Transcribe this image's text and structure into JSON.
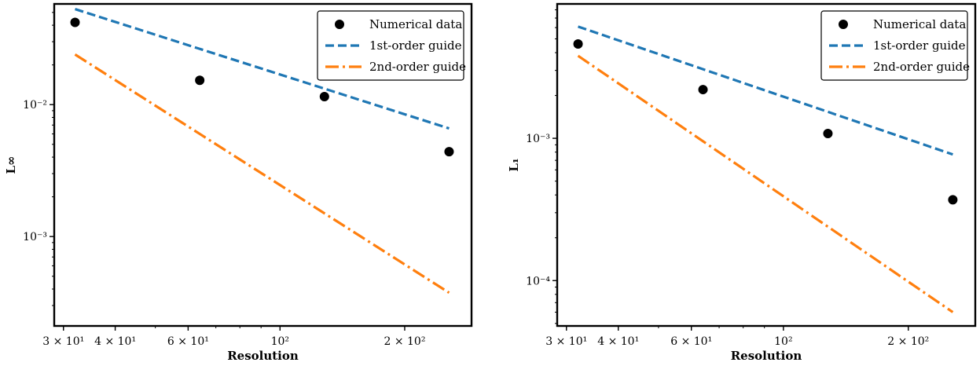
{
  "chart_data": [
    {
      "type": "scatter",
      "xscale": "log",
      "yscale": "log",
      "xlabel": "Resolution",
      "ylabel": "L∞",
      "xlim": [
        28.5,
        290
      ],
      "ylim": [
        0.00021,
        0.058
      ],
      "xticks": [
        {
          "value": 30,
          "label": "3 × 10¹"
        },
        {
          "value": 40,
          "label": "4 × 10¹"
        },
        {
          "value": 60,
          "label": "6 × 10¹"
        },
        {
          "value": 100,
          "label": "10²"
        },
        {
          "value": 200,
          "label": "2 × 10²"
        }
      ],
      "yticks": [
        {
          "value": 0.001,
          "label": "10⁻³"
        },
        {
          "value": 0.01,
          "label": "10⁻²"
        }
      ],
      "series": [
        {
          "name": "Numerical data",
          "kind": "scatter",
          "color": "#000000",
          "x": [
            32,
            64,
            128,
            256
          ],
          "y": [
            0.042,
            0.0153,
            0.0115,
            0.0044
          ]
        },
        {
          "name": "1st-order guide",
          "kind": "line",
          "style": "dashed",
          "color": "#1f77b4",
          "x": [
            32,
            256
          ],
          "y": [
            0.053,
            0.0066
          ]
        },
        {
          "name": "2nd-order guide",
          "kind": "line",
          "style": "dashdot",
          "color": "#ff7f0e",
          "x": [
            32,
            256
          ],
          "y": [
            0.024,
            0.000375
          ]
        }
      ],
      "legend": "top-right",
      "grid": false
    },
    {
      "type": "scatter",
      "xscale": "log",
      "yscale": "log",
      "xlabel": "Resolution",
      "ylabel": "L₁",
      "xlim": [
        28.5,
        290
      ],
      "ylim": [
        4.8e-05,
        0.0088
      ],
      "xticks": [
        {
          "value": 30,
          "label": "3 × 10¹"
        },
        {
          "value": 40,
          "label": "4 × 10¹"
        },
        {
          "value": 60,
          "label": "6 × 10¹"
        },
        {
          "value": 100,
          "label": "10²"
        },
        {
          "value": 200,
          "label": "2 × 10²"
        }
      ],
      "yticks": [
        {
          "value": 0.0001,
          "label": "10⁻⁴"
        },
        {
          "value": 0.001,
          "label": "10⁻³"
        }
      ],
      "series": [
        {
          "name": "Numerical data",
          "kind": "scatter",
          "color": "#000000",
          "x": [
            32,
            64,
            128,
            256
          ],
          "y": [
            0.0046,
            0.0022,
            0.00108,
            0.00037
          ]
        },
        {
          "name": "1st-order guide",
          "kind": "line",
          "style": "dashed",
          "color": "#1f77b4",
          "x": [
            32,
            256
          ],
          "y": [
            0.0061,
            0.00077
          ]
        },
        {
          "name": "2nd-order guide",
          "kind": "line",
          "style": "dashdot",
          "color": "#ff7f0e",
          "x": [
            32,
            256
          ],
          "y": [
            0.0038,
            6e-05
          ]
        }
      ],
      "legend": "top-right",
      "grid": false
    }
  ]
}
